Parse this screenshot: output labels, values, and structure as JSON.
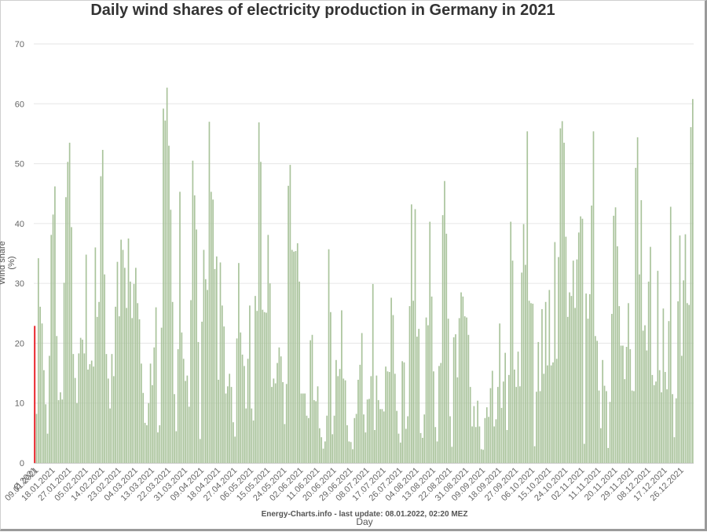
{
  "chart_data": {
    "type": "bar",
    "title": "Daily wind shares of electricity production in Germany in 2021",
    "xlabel": "Day",
    "ylabel": "Wind share (%)",
    "footer": "Energy-Charts.info - last update: 08.01.2022, 02:20 MEZ",
    "ylim": [
      0,
      70
    ],
    "yticks": [
      0,
      10,
      20,
      30,
      40,
      50,
      60,
      70
    ],
    "grid": true,
    "average": {
      "label": "Ø 2021",
      "value": 22.9,
      "color": "#e8262c"
    },
    "bar_color": "#a9c39b",
    "xtick_labels": [
      "Ø 2021",
      "09.01.2021",
      "18.01.2021",
      "27.01.2021",
      "05.02.2021",
      "14.02.2021",
      "23.02.2021",
      "04.03.2021",
      "13.03.2021",
      "22.03.2021",
      "31.03.2021",
      "09.04.2021",
      "18.04.2021",
      "27.04.2021",
      "06.05.2021",
      "15.05.2021",
      "24.05.2021",
      "02.06.2021",
      "11.06.2021",
      "20.06.2021",
      "29.06.2021",
      "08.07.2021",
      "17.07.2021",
      "26.07.2021",
      "04.08.2021",
      "13.08.2021",
      "22.08.2021",
      "31.08.2021",
      "09.09.2021",
      "18.09.2021",
      "27.09.2021",
      "06.10.2021",
      "15.10.2021",
      "24.10.2021",
      "02.11.2021",
      "11.11.2021",
      "20.11.2021",
      "29.11.2021",
      "08.12.2021",
      "17.12.2021",
      "26.12.2021"
    ],
    "values": [
      8.2,
      34.2,
      26.1,
      23.3,
      15.5,
      9.8,
      4.9,
      17.9,
      38.1,
      41.5,
      46.2,
      21.2,
      10.5,
      11.8,
      10.6,
      30.1,
      44.4,
      50.3,
      53.5,
      39.4,
      18.2,
      14.2,
      10.0,
      18.3,
      20.9,
      20.6,
      18.3,
      34.8,
      15.6,
      16.5,
      17.1,
      16.1,
      36.0,
      24.4,
      26.9,
      47.9,
      52.3,
      31.5,
      18.2,
      14.1,
      9.1,
      18.2,
      14.5,
      26.1,
      33.6,
      24.5,
      37.3,
      35.6,
      32.6,
      25.9,
      37.5,
      30.3,
      24.2,
      29.9,
      32.6,
      26.7,
      24.0,
      16.6,
      11.7,
      6.7,
      6.3,
      10.0,
      16.6,
      13.0,
      19.3,
      26.0,
      5.1,
      6.3,
      22.6,
      59.2,
      57.2,
      62.7,
      53.0,
      42.3,
      26.9,
      11.5,
      5.3,
      19.0,
      45.3,
      21.8,
      17.4,
      13.7,
      14.6,
      9.4,
      27.2,
      50.5,
      44.7,
      39.0,
      20.2,
      4.0,
      23.6,
      35.6,
      30.7,
      28.9,
      57.0,
      45.3,
      44.0,
      32.4,
      34.5,
      13.9,
      33.5,
      26.3,
      22.8,
      11.6,
      12.8,
      14.9,
      12.7,
      6.8,
      4.4,
      20.8,
      33.4,
      21.8,
      18.1,
      16.2,
      9.1,
      17.4,
      26.3,
      9.1,
      7.1,
      27.9,
      25.4,
      56.9,
      50.3,
      25.6,
      25.2,
      25.1,
      38.1,
      30.0,
      12.7,
      14.1,
      13.3,
      16.7,
      19.3,
      17.8,
      13.5,
      6.5,
      13.2,
      46.3,
      49.8,
      35.6,
      35.3,
      35.4,
      36.7,
      30.3,
      11.6,
      11.6,
      11.6,
      7.9,
      7.5,
      20.5,
      21.4,
      10.5,
      10.3,
      12.8,
      5.8,
      4.3,
      2.4,
      3.6,
      7.9,
      35.7,
      25.2,
      4.8,
      7.9,
      17.2,
      14.5,
      15.7,
      25.5,
      14.1,
      13.8,
      6.3,
      3.6,
      3.5,
      2.3,
      7.5,
      8.2,
      13.9,
      16.4,
      21.7,
      8.1,
      5.1,
      10.6,
      10.7,
      14.5,
      29.9,
      5.5,
      14.6,
      10.5,
      9.0,
      9.0,
      8.6,
      16.1,
      15.3,
      15.2,
      27.6,
      24.7,
      14.9,
      8.7,
      4.9,
      3.4,
      17.0,
      16.8,
      5.7,
      7.8,
      26.2,
      43.2,
      27.1,
      42.4,
      21.1,
      22.4,
      5.0,
      4.2,
      8.1,
      24.3,
      23.0,
      40.3,
      27.8,
      15.3,
      6.0,
      3.6,
      16.2,
      16.7,
      41.4,
      47.1,
      38.3,
      24.1,
      7.8,
      2.7,
      21.0,
      21.5,
      14.3,
      24.2,
      28.5,
      27.8,
      24.5,
      24.3,
      21.4,
      12.7,
      6.1,
      9.5,
      6.0,
      10.4,
      6.1,
      2.3,
      2.2,
      7.5,
      9.3,
      7.7,
      12.5,
      15.4,
      6.1,
      7.3,
      12.7,
      23.3,
      9.2,
      13.6,
      18.4,
      5.5,
      14.7,
      40.3,
      33.8,
      15.6,
      12.7,
      18.6,
      12.8,
      31.8,
      39.9,
      33.1,
      55.4,
      27.1,
      26.7,
      26.6,
      2.8,
      11.9,
      20.2,
      12.0,
      25.7,
      14.9,
      26.9,
      16.3,
      28.9,
      16.3,
      16.8,
      36.9,
      17.4,
      34.4,
      55.9,
      57.1,
      53.5,
      37.8,
      24.4,
      28.5,
      27.9,
      33.8,
      25.9,
      34.0,
      38.5,
      41.2,
      40.8,
      3.2,
      28.3,
      24.1,
      28.2,
      43.0,
      55.4,
      21.2,
      20.4,
      12.1,
      5.8,
      17.2,
      12.9,
      12.0,
      2.5,
      10.2,
      24.9,
      41.3,
      42.7,
      36.2,
      26.2,
      19.6,
      19.6,
      14.0,
      19.4,
      26.7,
      19.0,
      12.1,
      12.0,
      49.3,
      54.4,
      31.5,
      43.9,
      22.1,
      23.0,
      18.8,
      30.3,
      36.1,
      14.7,
      13.0,
      13.6,
      32.1,
      15.5,
      11.8,
      25.8,
      15.2,
      12.3,
      23.7,
      42.8,
      11.5,
      4.3,
      10.8,
      27.0,
      38.0,
      17.9,
      30.5,
      38.2,
      26.7,
      26.4,
      56.1,
      60.8
    ]
  }
}
